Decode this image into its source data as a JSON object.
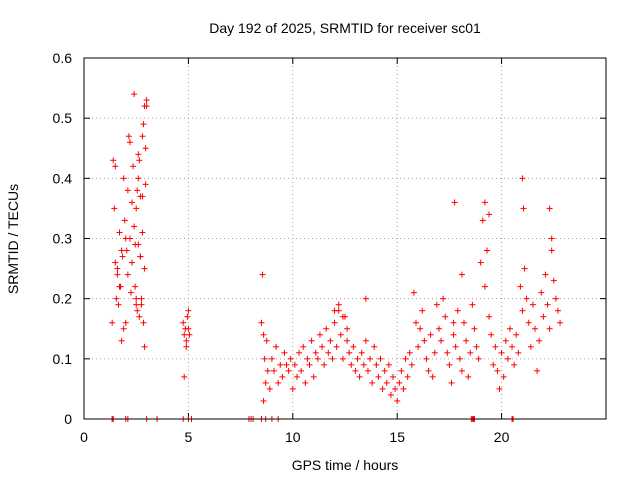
{
  "chart_data": {
    "type": "scatter",
    "title": "Day 192 of 2025, SRMTID for receiver sc01",
    "xlabel": "GPS time / hours",
    "ylabel": "SRMTID / TECUs",
    "xlim": [
      0,
      25
    ],
    "ylim": [
      0,
      0.6
    ],
    "xticks": [
      0,
      5,
      10,
      15,
      20
    ],
    "xtick_labels": [
      "0",
      "5",
      "10",
      "15",
      "20"
    ],
    "yticks": [
      0,
      0.1,
      0.2,
      0.3,
      0.4,
      0.5,
      0.6
    ],
    "ytick_labels": [
      "0",
      "0.1",
      "0.2",
      "0.3",
      "0.4",
      "0.5",
      "0.6"
    ],
    "grid": true,
    "marker": "+",
    "series": [
      {
        "name": "SRMTID",
        "color": "#ff0000",
        "x": [
          1.35,
          1.4,
          1.45,
          1.5,
          1.55,
          1.6,
          1.65,
          1.7,
          1.75,
          1.8,
          1.85,
          1.9,
          1.95,
          2.0,
          2.05,
          2.1,
          2.15,
          2.2,
          2.25,
          2.3,
          2.35,
          2.4,
          2.45,
          2.5,
          2.55,
          2.6,
          2.65,
          2.7,
          2.75,
          2.8,
          2.85,
          2.9,
          2.95,
          3.0,
          1.5,
          1.6,
          1.7,
          1.8,
          1.9,
          2.0,
          2.1,
          2.2,
          2.3,
          2.4,
          2.5,
          2.6,
          2.7,
          2.8,
          2.9,
          3.0,
          2.45,
          2.5,
          2.55,
          2.6,
          2.65,
          2.7,
          2.75,
          2.8,
          2.85,
          2.9,
          2.95,
          4.75,
          4.8,
          4.85,
          4.9,
          4.95,
          5.0,
          5.05,
          4.8,
          4.9,
          5.0,
          8.5,
          8.55,
          8.6,
          8.65,
          8.7,
          8.75,
          8.8,
          8.9,
          9.0,
          9.1,
          9.2,
          9.3,
          9.4,
          9.5,
          9.6,
          9.7,
          9.8,
          9.9,
          10.0,
          10.1,
          10.2,
          10.3,
          10.4,
          10.5,
          10.6,
          10.7,
          10.8,
          10.9,
          11.0,
          11.1,
          11.2,
          11.3,
          11.4,
          11.5,
          11.6,
          11.7,
          11.8,
          11.9,
          12.0,
          12.1,
          12.2,
          12.3,
          12.4,
          12.5,
          12.6,
          12.7,
          12.8,
          12.9,
          13.0,
          13.1,
          13.2,
          13.3,
          13.4,
          13.5,
          13.6,
          13.7,
          13.8,
          13.9,
          14.0,
          14.1,
          14.2,
          14.3,
          14.4,
          14.5,
          14.6,
          14.7,
          14.8,
          14.9,
          15.0,
          15.1,
          15.2,
          15.3,
          15.4,
          15.5,
          15.6,
          15.7,
          15.8,
          15.9,
          16.0,
          16.1,
          16.2,
          16.3,
          16.4,
          16.5,
          16.6,
          16.7,
          16.8,
          16.9,
          17.0,
          17.1,
          17.2,
          17.3,
          17.4,
          17.5,
          17.6,
          17.7,
          17.8,
          17.9,
          18.0,
          18.1,
          18.2,
          18.3,
          18.4,
          18.5,
          18.6,
          18.7,
          18.8,
          18.9,
          19.0,
          19.1,
          19.2,
          19.3,
          19.4,
          19.5,
          19.6,
          19.7,
          19.8,
          19.9,
          20.0,
          20.1,
          20.2,
          20.3,
          20.4,
          20.5,
          20.6,
          20.7,
          20.8,
          20.9,
          21.0,
          21.1,
          21.2,
          21.3,
          21.4,
          21.5,
          21.6,
          21.7,
          21.8,
          21.9,
          22.0,
          22.1,
          22.2,
          22.3,
          22.4,
          22.5,
          22.6,
          22.7,
          22.8,
          12.0,
          12.2,
          12.4,
          12.6,
          13.5,
          17.7,
          17.75,
          18.1,
          19.2,
          19.3,
          19.4,
          21.0,
          21.05,
          22.3,
          22.4,
          8.6,
          1.35,
          1.4,
          1.35,
          2.0,
          2.1,
          3.0,
          3.5,
          4.75,
          5.0,
          5.15,
          7.9,
          8.0,
          8.1,
          8.5,
          8.7,
          9.0,
          9.3,
          18.55,
          18.6,
          18.65,
          18.7,
          20.5,
          20.55
        ],
        "y": [
          0.16,
          0.43,
          0.35,
          0.26,
          0.2,
          0.24,
          0.19,
          0.31,
          0.22,
          0.13,
          0.27,
          0.4,
          0.33,
          0.16,
          0.28,
          0.38,
          0.47,
          0.3,
          0.21,
          0.36,
          0.42,
          0.54,
          0.29,
          0.2,
          0.38,
          0.44,
          0.17,
          0.27,
          0.19,
          0.37,
          0.49,
          0.12,
          0.45,
          0.52,
          0.42,
          0.25,
          0.22,
          0.28,
          0.15,
          0.3,
          0.24,
          0.46,
          0.26,
          0.32,
          0.19,
          0.4,
          0.27,
          0.47,
          0.25,
          0.53,
          0.22,
          0.35,
          0.18,
          0.29,
          0.43,
          0.37,
          0.2,
          0.31,
          0.16,
          0.52,
          0.39,
          0.16,
          0.14,
          0.15,
          0.13,
          0.17,
          0.18,
          0.14,
          0.07,
          0.12,
          0.15,
          0.16,
          0.24,
          0.03,
          0.1,
          0.06,
          0.13,
          0.08,
          0.05,
          0.1,
          0.08,
          0.12,
          0.06,
          0.09,
          0.07,
          0.11,
          0.09,
          0.08,
          0.1,
          0.05,
          0.09,
          0.07,
          0.11,
          0.08,
          0.12,
          0.06,
          0.1,
          0.09,
          0.13,
          0.07,
          0.11,
          0.1,
          0.14,
          0.12,
          0.09,
          0.15,
          0.11,
          0.13,
          0.1,
          0.16,
          0.12,
          0.18,
          0.14,
          0.1,
          0.17,
          0.13,
          0.11,
          0.09,
          0.12,
          0.08,
          0.1,
          0.07,
          0.11,
          0.09,
          0.13,
          0.08,
          0.1,
          0.06,
          0.12,
          0.09,
          0.07,
          0.1,
          0.05,
          0.08,
          0.06,
          0.09,
          0.04,
          0.07,
          0.05,
          0.03,
          0.06,
          0.08,
          0.05,
          0.1,
          0.07,
          0.11,
          0.09,
          0.21,
          0.16,
          0.12,
          0.15,
          0.18,
          0.13,
          0.1,
          0.08,
          0.14,
          0.07,
          0.11,
          0.19,
          0.15,
          0.13,
          0.2,
          0.17,
          0.11,
          0.09,
          0.06,
          0.14,
          0.12,
          0.18,
          0.1,
          0.08,
          0.16,
          0.13,
          0.07,
          0.11,
          0.19,
          0.15,
          0.12,
          0.1,
          0.26,
          0.33,
          0.22,
          0.28,
          0.17,
          0.14,
          0.09,
          0.12,
          0.08,
          0.05,
          0.11,
          0.07,
          0.13,
          0.1,
          0.15,
          0.12,
          0.09,
          0.14,
          0.11,
          0.22,
          0.18,
          0.25,
          0.2,
          0.16,
          0.12,
          0.19,
          0.15,
          0.08,
          0.13,
          0.21,
          0.17,
          0.24,
          0.19,
          0.15,
          0.28,
          0.23,
          0.2,
          0.18,
          0.16,
          0.18,
          0.19,
          0.17,
          0.15,
          0.2,
          0.16,
          0.36,
          0.24,
          0.36,
          0.28,
          0.34,
          0.4,
          0.35,
          0.35,
          0.3,
          0.14,
          0.0,
          0.0,
          0.0,
          0.0,
          0.0,
          0.0,
          0.0,
          0.0,
          0.0,
          0.0,
          0.0,
          0.0,
          0.0,
          0.0,
          0.0,
          0.0,
          0.0,
          0.0,
          0.0,
          0.0,
          0.0,
          0.0,
          0.0
        ]
      }
    ]
  }
}
